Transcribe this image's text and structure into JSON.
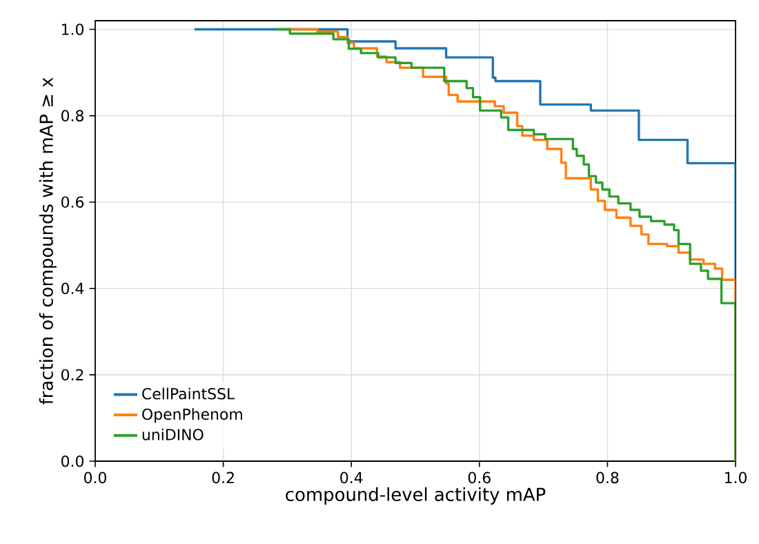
{
  "chart_data": {
    "type": "step",
    "xlabel": "compound-level activity mAP",
    "ylabel": "fraction of compounds with mAP ≥ x",
    "xlim": [
      0,
      1
    ],
    "ylim": [
      0,
      1.02
    ],
    "xticks": [
      {
        "value": 0,
        "label": "0.0"
      },
      {
        "value": 0.2,
        "label": "0.2"
      },
      {
        "value": 0.4,
        "label": "0.4"
      },
      {
        "value": 0.6,
        "label": "0.6"
      },
      {
        "value": 0.8,
        "label": "0.8"
      },
      {
        "value": 1,
        "label": "1.0"
      }
    ],
    "yticks": [
      {
        "value": 0,
        "label": "0.0"
      },
      {
        "value": 0.2,
        "label": "0.2"
      },
      {
        "value": 0.4,
        "label": "0.4"
      },
      {
        "value": 0.6,
        "label": "0.6"
      },
      {
        "value": 0.8,
        "label": "0.8"
      },
      {
        "value": 1,
        "label": "1.0"
      }
    ],
    "grid": true,
    "legend": "bottom left",
    "line_style": "solid",
    "marker": "none",
    "series": [
      {
        "name": "CellPaintSSL",
        "color": "#1f77b4",
        "x": [
          0.155,
          0.394,
          0.469,
          0.548,
          0.621,
          0.625,
          0.695,
          0.774,
          0.849,
          0.925,
          1.0
        ],
        "values": [
          1.0,
          0.972,
          0.956,
          0.935,
          0.888,
          0.88,
          0.826,
          0.812,
          0.744,
          0.69,
          0.0
        ]
      },
      {
        "name": "OpenPhenom",
        "color": "#ff7f0e",
        "x": [
          0.3,
          0.347,
          0.379,
          0.394,
          0.404,
          0.44,
          0.455,
          0.476,
          0.512,
          0.548,
          0.552,
          0.566,
          0.624,
          0.638,
          0.659,
          0.667,
          0.685,
          0.706,
          0.728,
          0.735,
          0.774,
          0.785,
          0.796,
          0.814,
          0.836,
          0.853,
          0.864,
          0.893,
          0.911,
          0.929,
          0.95,
          0.968,
          0.979,
          1.0
        ],
        "values": [
          1.0,
          0.995,
          0.982,
          0.969,
          0.956,
          0.937,
          0.924,
          0.911,
          0.89,
          0.875,
          0.848,
          0.833,
          0.822,
          0.807,
          0.776,
          0.754,
          0.744,
          0.723,
          0.691,
          0.655,
          0.629,
          0.603,
          0.582,
          0.564,
          0.545,
          0.525,
          0.503,
          0.498,
          0.483,
          0.467,
          0.457,
          0.446,
          0.42,
          0.0
        ]
      },
      {
        "name": "uniDINO",
        "color": "#2ca02c",
        "x": [
          0.282,
          0.304,
          0.372,
          0.396,
          0.415,
          0.442,
          0.469,
          0.494,
          0.545,
          0.58,
          0.59,
          0.601,
          0.634,
          0.645,
          0.685,
          0.703,
          0.746,
          0.752,
          0.763,
          0.771,
          0.782,
          0.792,
          0.803,
          0.817,
          0.836,
          0.85,
          0.868,
          0.889,
          0.904,
          0.911,
          0.929,
          0.946,
          0.957,
          0.978,
          1.0
        ],
        "values": [
          1.0,
          0.99,
          0.977,
          0.955,
          0.945,
          0.935,
          0.922,
          0.911,
          0.88,
          0.864,
          0.843,
          0.812,
          0.796,
          0.767,
          0.757,
          0.746,
          0.723,
          0.707,
          0.687,
          0.66,
          0.645,
          0.629,
          0.613,
          0.597,
          0.582,
          0.566,
          0.556,
          0.548,
          0.535,
          0.503,
          0.457,
          0.441,
          0.422,
          0.366,
          0.0
        ]
      }
    ]
  }
}
